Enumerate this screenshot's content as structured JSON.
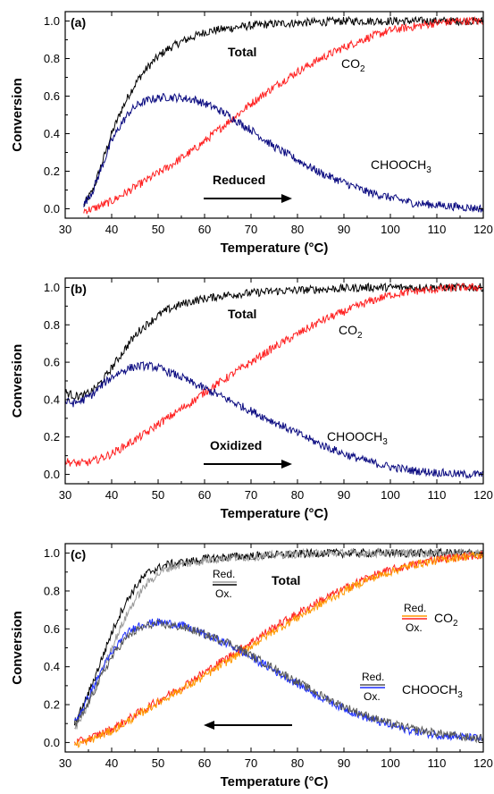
{
  "chart_data": [
    {
      "type": "line",
      "panel_label": "(a)",
      "xlabel": "Temperature (°C)",
      "ylabel": "Conversion",
      "xlim": [
        30,
        120
      ],
      "ylim": [
        -0.05,
        1.05
      ],
      "xticks": [
        30,
        40,
        50,
        60,
        70,
        80,
        90,
        100,
        110,
        120
      ],
      "yticks": [
        0.0,
        0.2,
        0.4,
        0.6,
        0.8,
        1.0
      ],
      "ytick_labels": [
        "0.0",
        "0.2",
        "0.4",
        "0.6",
        "0.8",
        "1.0"
      ],
      "grid": false,
      "x": [
        34,
        36,
        38,
        40,
        42,
        44,
        46,
        48,
        50,
        52,
        55,
        58,
        60,
        62,
        65,
        68,
        70,
        75,
        80,
        85,
        90,
        95,
        100,
        105,
        110,
        115,
        120
      ],
      "series": [
        {
          "name": "Total",
          "color": "#000000",
          "values": [
            0.02,
            0.1,
            0.25,
            0.4,
            0.52,
            0.62,
            0.7,
            0.76,
            0.81,
            0.85,
            0.89,
            0.92,
            0.94,
            0.95,
            0.96,
            0.97,
            0.975,
            0.985,
            0.99,
            0.995,
            1.0,
            1.0,
            1.0,
            1.0,
            1.0,
            1.0,
            1.0
          ]
        },
        {
          "name": "CO2",
          "color": "#ff2020",
          "values": [
            -0.01,
            0.0,
            0.02,
            0.04,
            0.07,
            0.1,
            0.13,
            0.16,
            0.19,
            0.22,
            0.27,
            0.32,
            0.36,
            0.4,
            0.46,
            0.52,
            0.56,
            0.65,
            0.73,
            0.8,
            0.86,
            0.91,
            0.95,
            0.97,
            0.99,
            1.0,
            1.0
          ]
        },
        {
          "name": "CHOOCH3",
          "color": "#0a0a80",
          "values": [
            0.02,
            0.1,
            0.23,
            0.36,
            0.45,
            0.52,
            0.56,
            0.58,
            0.59,
            0.595,
            0.59,
            0.58,
            0.56,
            0.54,
            0.5,
            0.45,
            0.42,
            0.33,
            0.26,
            0.19,
            0.14,
            0.09,
            0.06,
            0.03,
            0.02,
            0.01,
            0.0
          ]
        }
      ],
      "annotations": {
        "total": "Total",
        "co2_base": "CO",
        "co2_sub": "2",
        "chooch3_base": "CHOOCH",
        "chooch3_sub": "3",
        "arrow_label": "Reduced",
        "arrow_direction": "right"
      }
    },
    {
      "type": "line",
      "panel_label": "(b)",
      "xlabel": "Temperature (°C)",
      "ylabel": "Conversion",
      "xlim": [
        30,
        120
      ],
      "ylim": [
        -0.05,
        1.05
      ],
      "xticks": [
        30,
        40,
        50,
        60,
        70,
        80,
        90,
        100,
        110,
        120
      ],
      "yticks": [
        0.0,
        0.2,
        0.4,
        0.6,
        0.8,
        1.0
      ],
      "ytick_labels": [
        "0.0",
        "0.2",
        "0.4",
        "0.6",
        "0.8",
        "1.0"
      ],
      "grid": false,
      "x": [
        30,
        32,
        34,
        36,
        38,
        40,
        42,
        44,
        46,
        48,
        50,
        52,
        55,
        58,
        60,
        65,
        70,
        75,
        80,
        85,
        90,
        95,
        100,
        105,
        110,
        115,
        120
      ],
      "series": [
        {
          "name": "Total",
          "color": "#000000",
          "values": [
            0.44,
            0.42,
            0.42,
            0.45,
            0.5,
            0.57,
            0.64,
            0.71,
            0.77,
            0.81,
            0.85,
            0.88,
            0.91,
            0.93,
            0.94,
            0.96,
            0.97,
            0.98,
            0.985,
            0.99,
            0.995,
            1.0,
            1.0,
            1.0,
            1.0,
            1.0,
            1.0
          ]
        },
        {
          "name": "CO2",
          "color": "#ff2020",
          "values": [
            0.07,
            0.06,
            0.06,
            0.07,
            0.09,
            0.11,
            0.14,
            0.17,
            0.2,
            0.23,
            0.27,
            0.3,
            0.35,
            0.4,
            0.44,
            0.52,
            0.6,
            0.68,
            0.75,
            0.82,
            0.87,
            0.92,
            0.96,
            0.98,
            0.99,
            1.0,
            1.0
          ]
        },
        {
          "name": "CHOOCH3",
          "color": "#0a0a80",
          "values": [
            0.39,
            0.38,
            0.4,
            0.43,
            0.48,
            0.52,
            0.55,
            0.57,
            0.58,
            0.58,
            0.57,
            0.55,
            0.52,
            0.48,
            0.46,
            0.4,
            0.34,
            0.28,
            0.22,
            0.16,
            0.11,
            0.07,
            0.04,
            0.02,
            0.01,
            0.0,
            0.0
          ]
        }
      ],
      "annotations": {
        "total": "Total",
        "co2_base": "CO",
        "co2_sub": "2",
        "chooch3_base": "CHOOCH",
        "chooch3_sub": "3",
        "arrow_label": "Oxidized",
        "arrow_direction": "right"
      }
    },
    {
      "type": "line",
      "panel_label": "(c)",
      "xlabel": "Temperature (°C)",
      "ylabel": "Conversion",
      "xlim": [
        30,
        120
      ],
      "ylim": [
        -0.05,
        1.05
      ],
      "xticks": [
        30,
        40,
        50,
        60,
        70,
        80,
        90,
        100,
        110,
        120
      ],
      "yticks": [
        0.0,
        0.2,
        0.4,
        0.6,
        0.8,
        1.0
      ],
      "ytick_labels": [
        "0.0",
        "0.2",
        "0.4",
        "0.6",
        "0.8",
        "1.0"
      ],
      "grid": false,
      "x": [
        32,
        34,
        36,
        38,
        40,
        42,
        44,
        46,
        48,
        50,
        52,
        55,
        58,
        60,
        65,
        70,
        75,
        80,
        85,
        90,
        95,
        100,
        105,
        110,
        115,
        120
      ],
      "series": [
        {
          "name": "Total Ox.",
          "color": "#000000",
          "values": [
            0.1,
            0.2,
            0.32,
            0.45,
            0.58,
            0.69,
            0.78,
            0.85,
            0.9,
            0.92,
            0.94,
            0.95,
            0.96,
            0.97,
            0.98,
            0.985,
            0.99,
            0.995,
            1.0,
            1.0,
            1.0,
            1.0,
            1.0,
            1.0,
            1.0,
            1.0
          ]
        },
        {
          "name": "Total Red.",
          "color": "#9a9a9a",
          "values": [
            0.07,
            0.15,
            0.26,
            0.38,
            0.5,
            0.61,
            0.71,
            0.79,
            0.85,
            0.89,
            0.92,
            0.94,
            0.95,
            0.96,
            0.975,
            0.98,
            0.99,
            0.995,
            1.0,
            1.0,
            1.0,
            1.0,
            1.0,
            1.0,
            1.0,
            1.0
          ]
        },
        {
          "name": "CO2 Ox.",
          "color": "#ff2020",
          "values": [
            0.0,
            0.01,
            0.03,
            0.05,
            0.07,
            0.1,
            0.13,
            0.16,
            0.19,
            0.22,
            0.25,
            0.29,
            0.34,
            0.37,
            0.45,
            0.53,
            0.61,
            0.68,
            0.75,
            0.81,
            0.87,
            0.91,
            0.94,
            0.97,
            0.98,
            0.99
          ]
        },
        {
          "name": "CO2 Red.",
          "color": "#ff9900",
          "values": [
            -0.01,
            0.0,
            0.02,
            0.04,
            0.06,
            0.09,
            0.12,
            0.15,
            0.18,
            0.21,
            0.24,
            0.28,
            0.32,
            0.35,
            0.43,
            0.51,
            0.59,
            0.66,
            0.73,
            0.8,
            0.86,
            0.9,
            0.94,
            0.96,
            0.98,
            0.99
          ]
        },
        {
          "name": "CHOOCH3 Ox.",
          "color": "#1a2cff",
          "values": [
            0.1,
            0.19,
            0.29,
            0.39,
            0.47,
            0.54,
            0.59,
            0.62,
            0.63,
            0.635,
            0.63,
            0.62,
            0.59,
            0.57,
            0.52,
            0.45,
            0.38,
            0.31,
            0.24,
            0.18,
            0.13,
            0.09,
            0.06,
            0.04,
            0.03,
            0.02
          ]
        },
        {
          "name": "CHOOCH3 Red.",
          "color": "#555555",
          "values": [
            0.08,
            0.16,
            0.26,
            0.36,
            0.45,
            0.52,
            0.57,
            0.6,
            0.62,
            0.625,
            0.62,
            0.61,
            0.59,
            0.57,
            0.53,
            0.46,
            0.39,
            0.32,
            0.25,
            0.19,
            0.14,
            0.1,
            0.07,
            0.05,
            0.03,
            0.02
          ]
        }
      ],
      "annotations": {
        "total": "Total",
        "co2_base": "CO",
        "co2_sub": "2",
        "chooch3_base": "CHOOCH",
        "chooch3_sub": "3",
        "arrow_direction": "left",
        "legend_red": "Red.",
        "legend_ox": "Ox."
      }
    }
  ]
}
